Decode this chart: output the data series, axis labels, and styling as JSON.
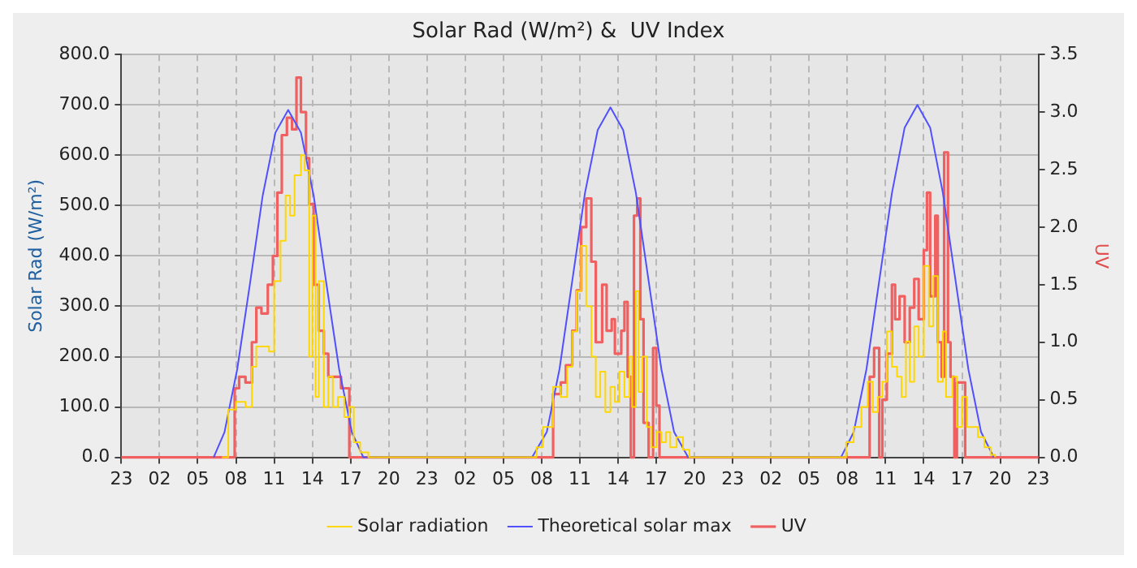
{
  "chart_data": {
    "type": "line",
    "title": "Solar Rad (W/m²) &  UV Index",
    "ylabel": "Solar Rad (W/m²)",
    "y2label": "UV",
    "xlim": [
      "--01-01T23:00",
      "--01-04T23:00"
    ],
    "xticks": [
      {
        "value": "--01-01T23:00",
        "label": "23"
      },
      {
        "value": "--01-02T02:00",
        "label": "02"
      },
      {
        "value": "--01-02T05:00",
        "label": "05"
      },
      {
        "value": "--01-02T08:00",
        "label": "08"
      },
      {
        "value": "--01-02T11:00",
        "label": "11"
      },
      {
        "value": "--01-02T14:00",
        "label": "14"
      },
      {
        "value": "--01-02T17:00",
        "label": "17"
      },
      {
        "value": "--01-02T20:00",
        "label": "20"
      },
      {
        "value": "--01-02T23:00",
        "label": "23"
      },
      {
        "value": "--01-03T02:00",
        "label": "02"
      },
      {
        "value": "--01-03T05:00",
        "label": "05"
      },
      {
        "value": "--01-03T08:00",
        "label": "08"
      },
      {
        "value": "--01-03T11:00",
        "label": "11"
      },
      {
        "value": "--01-03T14:00",
        "label": "14"
      },
      {
        "value": "--01-03T17:00",
        "label": "17"
      },
      {
        "value": "--01-03T20:00",
        "label": "20"
      },
      {
        "value": "--01-03T23:00",
        "label": "23"
      },
      {
        "value": "--01-04T02:00",
        "label": "02"
      },
      {
        "value": "--01-04T05:00",
        "label": "05"
      },
      {
        "value": "--01-04T08:00",
        "label": "08"
      },
      {
        "value": "--01-04T11:00",
        "label": "11"
      },
      {
        "value": "--01-04T14:00",
        "label": "14"
      },
      {
        "value": "--01-04T17:00",
        "label": "17"
      },
      {
        "value": "--01-04T20:00",
        "label": "20"
      },
      {
        "value": "--01-04T23:00",
        "label": "23"
      }
    ],
    "ylim": [
      0,
      800
    ],
    "yticks": [
      {
        "value": 0,
        "label": "0.0"
      },
      {
        "value": 100,
        "label": "100.0"
      },
      {
        "value": 200,
        "label": "200.0"
      },
      {
        "value": 300,
        "label": "300.0"
      },
      {
        "value": 400,
        "label": "400.0"
      },
      {
        "value": 500,
        "label": "500.0"
      },
      {
        "value": 600,
        "label": "600.0"
      },
      {
        "value": 700,
        "label": "700.0"
      },
      {
        "value": 800,
        "label": "800.0"
      }
    ],
    "y2lim": [
      0,
      3.5
    ],
    "y2ticks": [
      {
        "value": 0,
        "label": "0.0"
      },
      {
        "value": 0.5,
        "label": "0.5"
      },
      {
        "value": 1,
        "label": "1.0"
      },
      {
        "value": 1.5,
        "label": "1.5"
      },
      {
        "value": 2,
        "label": "2.0"
      },
      {
        "value": 2.5,
        "label": "2.5"
      },
      {
        "value": 3,
        "label": "3.0"
      },
      {
        "value": 3.5,
        "label": "3.5"
      }
    ],
    "grid": true,
    "legend": "bottom",
    "series": [
      {
        "name": "Solar radiation",
        "type": "step",
        "color": "#ffd700",
        "x": [
          "--01-02T06:54",
          "--01-02T07:24",
          "--01-02T08:00",
          "--01-02T08:45",
          "--01-02T09:15",
          "--01-02T09:36",
          "--01-02T10:36",
          "--01-02T11:00",
          "--01-02T11:30",
          "--01-02T11:54",
          "--01-02T12:15",
          "--01-02T12:36",
          "--01-02T13:06",
          "--01-02T13:24",
          "--01-02T13:45",
          "--01-02T14:00",
          "--01-02T14:15",
          "--01-02T14:30",
          "--01-02T14:54",
          "--01-02T15:15",
          "--01-02T15:36",
          "--01-02T16:00",
          "--01-02T16:30",
          "--01-02T16:54",
          "--01-02T17:15",
          "--01-02T17:45",
          "--01-02T18:24",
          "--01-03T07:06",
          "--01-03T07:36",
          "--01-03T08:06",
          "--01-03T08:54",
          "--01-03T09:30",
          "--01-03T10:00",
          "--01-03T10:24",
          "--01-03T10:45",
          "--01-03T11:06",
          "--01-03T11:30",
          "--01-03T11:54",
          "--01-03T12:15",
          "--01-03T12:36",
          "--01-03T13:00",
          "--01-03T13:24",
          "--01-03T13:45",
          "--01-03T14:06",
          "--01-03T14:30",
          "--01-03T14:54",
          "--01-03T15:06",
          "--01-03T15:24",
          "--01-03T15:36",
          "--01-03T15:54",
          "--01-03T16:15",
          "--01-03T16:36",
          "--01-03T17:00",
          "--01-03T17:24",
          "--01-03T17:45",
          "--01-03T18:06",
          "--01-03T18:36",
          "--01-03T19:06",
          "--01-03T19:36",
          "--01-04T07:15",
          "--01-04T07:54",
          "--01-04T08:30",
          "--01-04T09:06",
          "--01-04T09:36",
          "--01-04T10:00",
          "--01-04T10:24",
          "--01-04T10:45",
          "--01-04T11:06",
          "--01-04T11:30",
          "--01-04T11:54",
          "--01-04T12:15",
          "--01-04T12:36",
          "--01-04T12:54",
          "--01-04T13:15",
          "--01-04T13:36",
          "--01-04T14:00",
          "--01-04T14:24",
          "--01-04T14:45",
          "--01-04T15:06",
          "--01-04T15:30",
          "--01-04T15:45",
          "--01-04T16:15",
          "--01-04T16:36",
          "--01-04T17:00",
          "--01-04T17:24",
          "--01-04T17:45",
          "--01-04T18:15",
          "--01-04T18:45",
          "--01-04T19:15",
          "--01-04T19:36"
        ],
        "values": [
          0,
          95,
          110,
          100,
          180,
          220,
          210,
          350,
          430,
          520,
          480,
          560,
          600,
          570,
          200,
          480,
          120,
          350,
          100,
          160,
          100,
          120,
          80,
          100,
          30,
          10,
          0,
          0,
          20,
          60,
          140,
          120,
          180,
          250,
          330,
          420,
          300,
          200,
          120,
          170,
          90,
          140,
          110,
          170,
          120,
          200,
          100,
          330,
          130,
          200,
          60,
          20,
          50,
          30,
          50,
          20,
          40,
          15,
          0,
          0,
          30,
          60,
          100,
          150,
          90,
          120,
          150,
          250,
          180,
          160,
          120,
          230,
          150,
          260,
          200,
          380,
          260,
          360,
          150,
          250,
          120,
          160,
          60,
          120,
          60,
          60,
          40,
          20,
          5,
          0
        ]
      },
      {
        "name": "Theoretical solar max",
        "type": "line",
        "color": "#5050ff",
        "x": [
          "--01-02T06:15",
          "--01-02T07:06",
          "--01-02T08:06",
          "--01-02T09:06",
          "--01-02T10:06",
          "--01-02T11:06",
          "--01-02T12:06",
          "--01-02T13:06",
          "--01-02T14:06",
          "--01-02T15:06",
          "--01-02T16:06",
          "--01-02T17:06",
          "--01-02T18:00",
          "--01-03T07:15",
          "--01-03T08:24",
          "--01-03T09:24",
          "--01-03T10:24",
          "--01-03T11:24",
          "--01-03T12:24",
          "--01-03T13:24",
          "--01-03T14:24",
          "--01-03T15:24",
          "--01-03T16:24",
          "--01-03T17:24",
          "--01-03T18:24",
          "--01-03T19:30",
          "--01-04T07:30",
          "--01-04T08:30",
          "--01-04T09:30",
          "--01-04T10:30",
          "--01-04T11:30",
          "--01-04T12:30",
          "--01-04T13:30",
          "--01-04T14:30",
          "--01-04T15:30",
          "--01-04T16:30",
          "--01-04T17:30",
          "--01-04T18:30",
          "--01-04T19:30"
        ],
        "values": [
          0,
          50,
          175,
          345,
          520,
          645,
          690,
          645,
          520,
          345,
          175,
          50,
          0,
          0,
          50,
          175,
          350,
          525,
          650,
          695,
          650,
          525,
          350,
          175,
          50,
          0,
          0,
          50,
          175,
          350,
          525,
          655,
          700,
          655,
          525,
          350,
          175,
          50,
          0
        ]
      },
      {
        "name": "UV",
        "type": "step",
        "color": "#f06060",
        "axis": "y2",
        "x": [
          "--01-01T23:00",
          "--01-02T07:54",
          "--01-02T08:15",
          "--01-02T08:45",
          "--01-02T09:15",
          "--01-02T09:36",
          "--01-02T10:00",
          "--01-02T10:30",
          "--01-02T10:54",
          "--01-02T11:15",
          "--01-02T11:36",
          "--01-02T12:00",
          "--01-02T12:24",
          "--01-02T12:45",
          "--01-02T13:06",
          "--01-02T13:30",
          "--01-02T13:45",
          "--01-02T14:06",
          "--01-02T14:30",
          "--01-02T14:54",
          "--01-02T15:15",
          "--01-02T15:45",
          "--01-02T16:15",
          "--01-02T16:36",
          "--01-02T16:54",
          "--01-03T08:54",
          "--01-03T09:30",
          "--01-03T09:54",
          "--01-03T10:24",
          "--01-03T10:45",
          "--01-03T11:06",
          "--01-03T11:30",
          "--01-03T11:54",
          "--01-03T12:15",
          "--01-03T12:45",
          "--01-03T13:06",
          "--01-03T13:30",
          "--01-03T13:45",
          "--01-03T14:15",
          "--01-03T14:30",
          "--01-03T14:45",
          "--01-03T15:00",
          "--01-03T15:15",
          "--01-03T15:30",
          "--01-03T15:45",
          "--01-03T16:00",
          "--01-03T16:24",
          "--01-03T16:45",
          "--01-03T17:00",
          "--01-03T17:15",
          "--01-04T09:45",
          "--01-04T10:06",
          "--01-04T10:30",
          "--01-04T10:45",
          "--01-04T11:06",
          "--01-04T11:30",
          "--01-04T11:45",
          "--01-04T12:06",
          "--01-04T12:30",
          "--01-04T12:54",
          "--01-04T13:15",
          "--01-04T13:36",
          "--01-04T14:00",
          "--01-04T14:15",
          "--01-04T14:30",
          "--01-04T14:54",
          "--01-04T15:06",
          "--01-04T15:24",
          "--01-04T15:36",
          "--01-04T15:54",
          "--01-04T16:06",
          "--01-04T16:24",
          "--01-04T16:36",
          "--01-04T17:00",
          "--01-04T17:15",
          "--01-04T23:00"
        ],
        "values": [
          0,
          0.6,
          0.7,
          0.65,
          1.0,
          1.3,
          1.25,
          1.5,
          1.75,
          2.3,
          2.8,
          2.95,
          2.85,
          3.3,
          3.0,
          2.6,
          2.2,
          1.5,
          1.1,
          0.9,
          0.7,
          0.7,
          0.6,
          0.6,
          0,
          0.55,
          0.65,
          0.8,
          1.1,
          1.45,
          2.0,
          2.25,
          1.7,
          1.0,
          1.5,
          1.1,
          1.2,
          0.9,
          1.1,
          1.35,
          0.7,
          0,
          2.1,
          2.25,
          1.2,
          0.3,
          0,
          0.95,
          0.45,
          0,
          0.7,
          0.95,
          0,
          0.5,
          0.9,
          1.5,
          1.2,
          1.4,
          1.0,
          1.3,
          1.55,
          1.2,
          1.8,
          2.3,
          1.4,
          2.1,
          1.0,
          0.7,
          2.65,
          1.0,
          0.7,
          0,
          0.65,
          0.65,
          0,
          0
        ]
      }
    ]
  }
}
